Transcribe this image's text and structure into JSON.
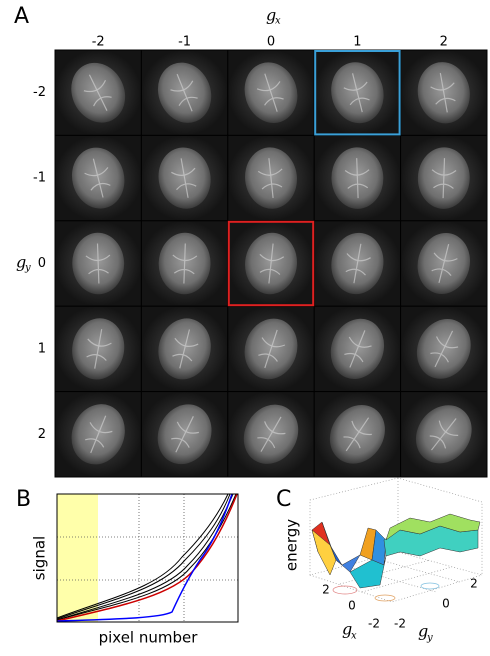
{
  "panel_a": {
    "label": "A",
    "x_axis_label": "g",
    "x_axis_sub": "x",
    "columns": [
      "-2",
      "-1",
      "0",
      "1",
      "2"
    ],
    "y_axis_label": "g",
    "y_axis_sub": "y",
    "rows": [
      "-2",
      "-1",
      "0",
      "1",
      "2"
    ]
  },
  "panel_b": {
    "label": "B",
    "y_label": "signal",
    "x_label": "pixel number"
  },
  "panel_c": {
    "label": "C",
    "z_label": "energy",
    "x_label": "g",
    "x_sub": "x",
    "y_label": "g",
    "y_sub": "y",
    "x_ticks": [
      "2",
      "0",
      "-2"
    ],
    "y_ticks": [
      "-2",
      "0",
      "2"
    ]
  }
}
